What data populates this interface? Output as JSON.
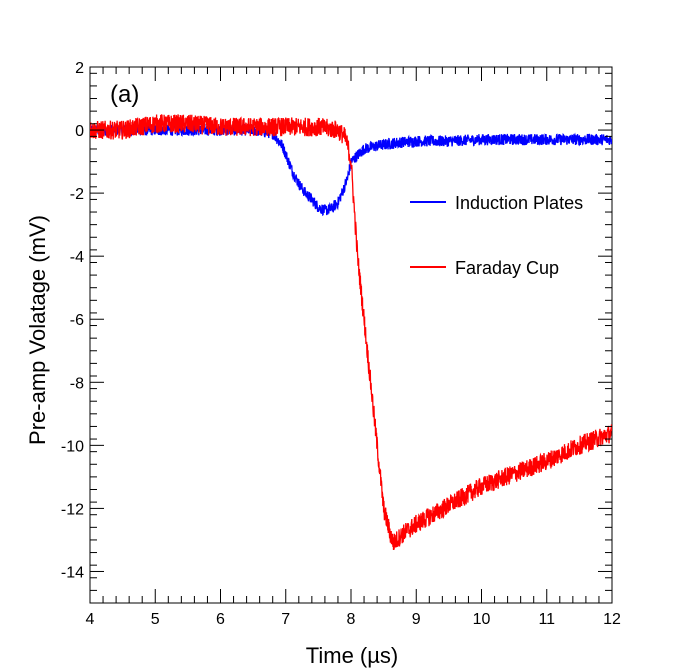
{
  "chart_data": {
    "type": "line",
    "panel_label": "(a)",
    "xlabel": "Time (µs)",
    "ylabel": "Pre-amp Volatage (mV)",
    "xlim": [
      4,
      12
    ],
    "ylim": [
      -15,
      2
    ],
    "x_ticks": [
      4,
      5,
      6,
      7,
      8,
      9,
      10,
      11,
      12
    ],
    "y_ticks": [
      2,
      0,
      -2,
      -4,
      -6,
      -8,
      -10,
      -12,
      -14
    ],
    "grid": false,
    "legend_position": "right-middle",
    "series": [
      {
        "name": "Induction Plates",
        "color": "#0000ff",
        "x": [
          4.0,
          4.5,
          5.0,
          5.5,
          6.0,
          6.5,
          6.8,
          6.95,
          7.1,
          7.2,
          7.3,
          7.4,
          7.5,
          7.6,
          7.7,
          7.8,
          7.9,
          7.95,
          8.0,
          8.1,
          8.2,
          8.4,
          8.7,
          9.0,
          9.5,
          10.0,
          10.5,
          11.0,
          11.5,
          12.0
        ],
        "y": [
          0.0,
          0.0,
          0.0,
          0.0,
          0.0,
          0.0,
          -0.1,
          -0.5,
          -1.3,
          -1.7,
          -2.0,
          -2.2,
          -2.45,
          -2.55,
          -2.5,
          -2.3,
          -1.8,
          -1.5,
          -1.0,
          -0.8,
          -0.6,
          -0.5,
          -0.4,
          -0.35,
          -0.35,
          -0.3,
          -0.3,
          -0.3,
          -0.3,
          -0.3
        ]
      },
      {
        "name": "Faraday Cup",
        "color": "#ff0000",
        "x": [
          4.0,
          4.5,
          5.0,
          5.5,
          6.0,
          6.5,
          7.0,
          7.5,
          7.8,
          7.9,
          7.95,
          8.0,
          8.05,
          8.1,
          8.2,
          8.3,
          8.4,
          8.5,
          8.6,
          8.65,
          8.7,
          8.8,
          9.0,
          9.5,
          10.0,
          10.5,
          11.0,
          11.5,
          12.0
        ],
        "y": [
          0.0,
          0.0,
          0.2,
          0.2,
          0.1,
          0.1,
          0.1,
          0.1,
          0.0,
          -0.2,
          -0.5,
          -1.0,
          -2.5,
          -4.0,
          -6.0,
          -8.0,
          -10.0,
          -12.0,
          -12.8,
          -13.1,
          -13.0,
          -12.8,
          -12.5,
          -11.9,
          -11.3,
          -10.9,
          -10.5,
          -10.0,
          -9.6
        ]
      }
    ]
  }
}
